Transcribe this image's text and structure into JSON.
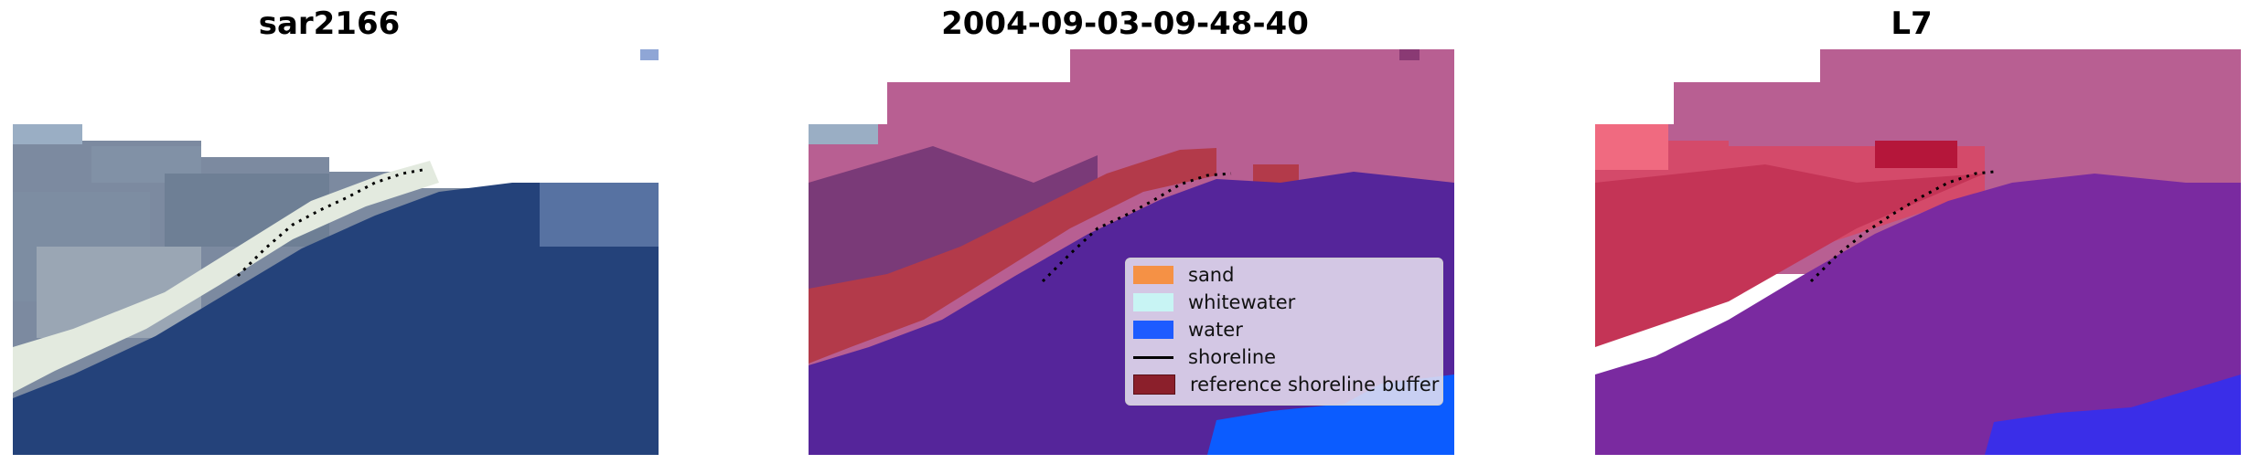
{
  "panels": [
    {
      "title": "sar2166"
    },
    {
      "title": "2004-09-03-09-48-40"
    },
    {
      "title": "L7"
    }
  ],
  "legend": {
    "items": [
      {
        "label": "sand",
        "color": "#f59145"
      },
      {
        "label": "whitewater",
        "color": "#c8f4f4"
      },
      {
        "label": "water",
        "color": "#1e5bff"
      },
      {
        "label": "shoreline",
        "color": "#000000"
      },
      {
        "label": "reference shoreline buffer",
        "color": "#8b1f2b"
      }
    ]
  },
  "colors": {
    "water": "#24427a",
    "overlay_pink": "#b85f92",
    "water_class": "#55259a",
    "buffer": "#b33a4a",
    "blue_class": "#0b5cff"
  }
}
